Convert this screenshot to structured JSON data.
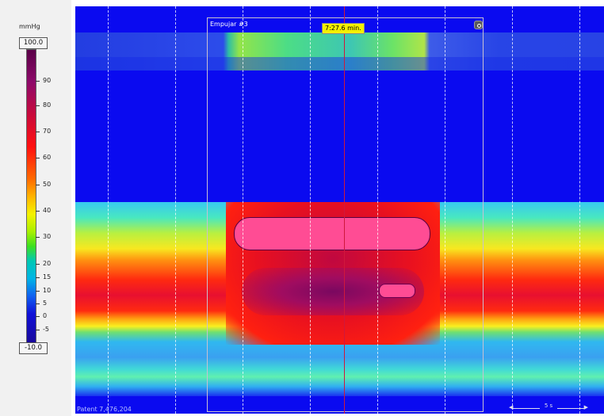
{
  "scale": {
    "unit": "mmHg",
    "max_value": "100.0",
    "min_value": "-10.0",
    "ticks": [
      "90",
      "80",
      "70",
      "60",
      "50",
      "40",
      "30",
      "20",
      "15",
      "10",
      "5",
      "0",
      "-5"
    ]
  },
  "plot": {
    "selection_title": "Empujar #3",
    "cursor_time": "7:27.6 min.",
    "footer_text": "Patent 7,476,204",
    "time_scale_label": "5 s"
  },
  "colors": {
    "background": "#0a0af0",
    "cursor": "#d0183c",
    "badge": "#f4f000"
  }
}
